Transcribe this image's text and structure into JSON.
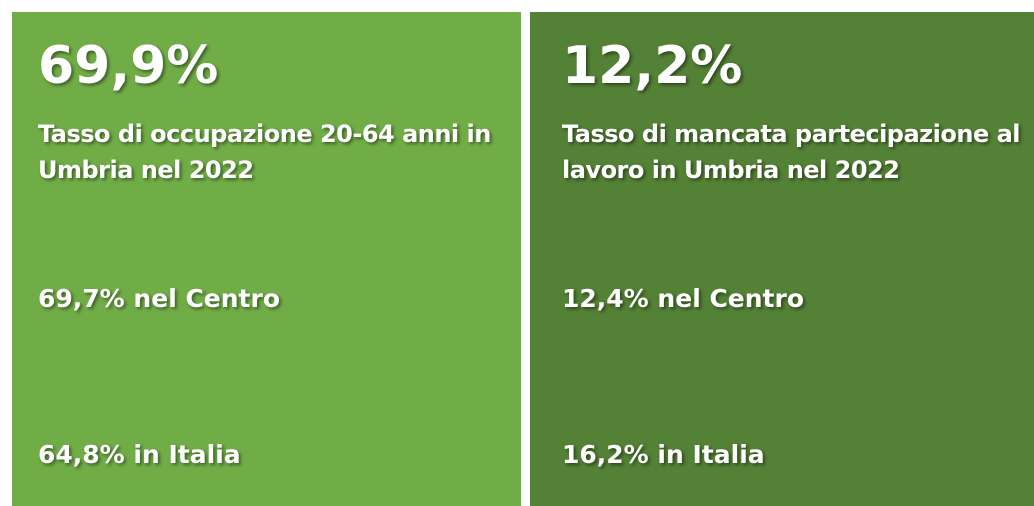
{
  "panels": [
    {
      "value": "69,9%",
      "description": "Tasso di occupazione 20-64 anni in Umbria nel 2022",
      "centro": "69,7% nel Centro",
      "italia": "64,8% in Italia"
    },
    {
      "value": "12,2%",
      "description": "Tasso di mancata partecipazione al lavoro in Umbria nel 2022",
      "centro": "12,4% nel Centro",
      "italia": "16,2% in Italia"
    }
  ]
}
